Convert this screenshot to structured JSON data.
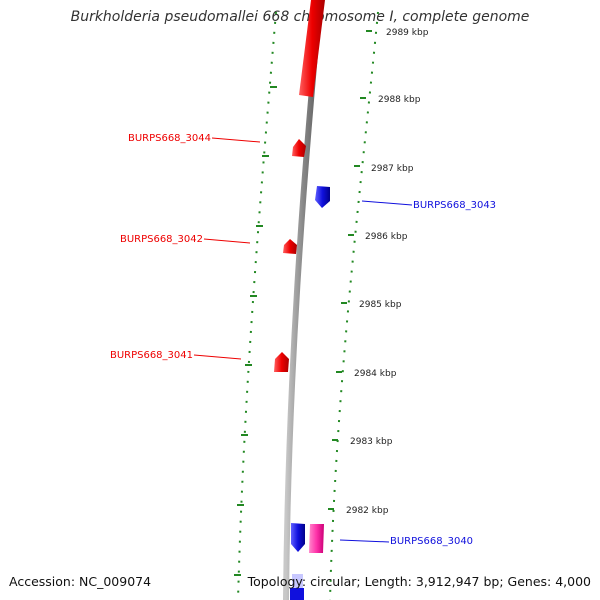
{
  "title": "Burkholderia pseudomallei 668 chromosome I, complete genome",
  "footer": {
    "accession": "Accession: NC_009074",
    "summary": "Topology: circular; Length: 3,912,947 bp; Genes: 4,000"
  },
  "colors": {
    "forward_gene": "#ee0000",
    "reverse_gene": "#1010dd",
    "pink_gene": "#ff33aa",
    "backbone": "#888888",
    "ticks": "#228822"
  },
  "kbp_labels": [
    "2989 kbp",
    "2988 kbp",
    "2987 kbp",
    "2986 kbp",
    "2985 kbp",
    "2984 kbp",
    "2983 kbp",
    "2982 kbp"
  ],
  "genes": [
    {
      "name": "BURPS668_3044",
      "strand": "forward"
    },
    {
      "name": "BURPS668_3043",
      "strand": "reverse"
    },
    {
      "name": "BURPS668_3042",
      "strand": "forward"
    },
    {
      "name": "BURPS668_3041",
      "strand": "forward"
    },
    {
      "name": "BURPS668_3040",
      "strand": "reverse"
    }
  ]
}
